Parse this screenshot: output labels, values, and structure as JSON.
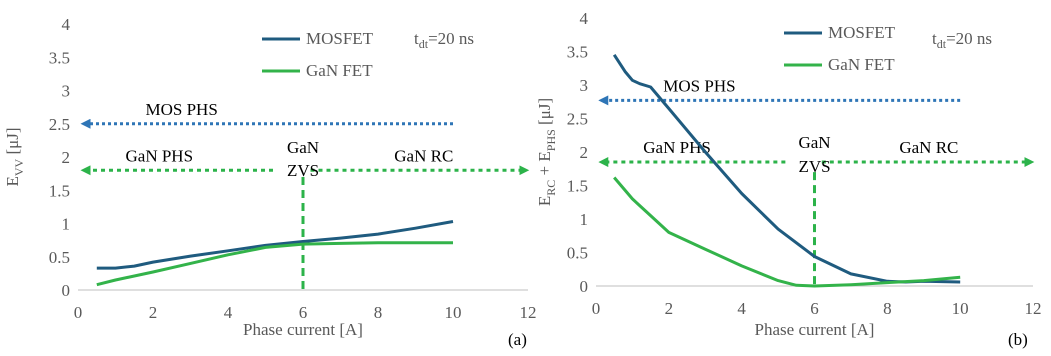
{
  "colors": {
    "mosfet": "#1f5b7f",
    "gan": "#33b34a",
    "mos_arrow": "#2e75b6",
    "gan_arrow": "#2cb34a",
    "axis": "#bfbfbf"
  },
  "chart_data": [
    {
      "type": "line",
      "panel_label": "(a)",
      "xlabel": "Phase current [A]",
      "ylabel": {
        "base": "E",
        "sub": "VV",
        "rest": " [μJ]"
      },
      "xlim": [
        0,
        12
      ],
      "ylim": [
        0,
        4
      ],
      "xticks": [
        "0",
        "2",
        "4",
        "6",
        "8",
        "10",
        "12"
      ],
      "yticks": [
        "0",
        "0.5",
        "1",
        "1.5",
        "2",
        "2.5",
        "3",
        "3.5",
        "4"
      ],
      "grid": false,
      "legend_placement": "top-right",
      "condition": {
        "base": "t",
        "sub": "dt",
        "rest": "=20 ns"
      },
      "series": [
        {
          "name": "MOSFET",
          "color_key": "mosfet",
          "x": [
            0.5,
            1.0,
            1.5,
            2.0,
            3.0,
            4.0,
            5.0,
            6.0,
            7.0,
            8.0,
            9.0,
            10.0
          ],
          "y": [
            0.33,
            0.33,
            0.36,
            0.42,
            0.51,
            0.59,
            0.67,
            0.73,
            0.78,
            0.84,
            0.93,
            1.03
          ]
        },
        {
          "name": "GaN FET",
          "color_key": "gan",
          "x": [
            0.5,
            1.0,
            2.0,
            3.0,
            4.0,
            5.0,
            6.0,
            7.0,
            8.0,
            9.0,
            10.0
          ],
          "y": [
            0.08,
            0.15,
            0.27,
            0.4,
            0.53,
            0.64,
            0.69,
            0.7,
            0.71,
            0.71,
            0.71
          ]
        }
      ],
      "annotations": [
        {
          "text": "MOS PHS",
          "arrow": "left",
          "x_from": 10.0,
          "x_to": 0.2,
          "y": 2.5,
          "color_key": "mos_arrow"
        },
        {
          "text": "GaN PHS",
          "arrow": "left",
          "x_from": 5.2,
          "x_to": 0.2,
          "y": 1.8,
          "color_key": "gan_arrow"
        },
        {
          "text": "GaN RC",
          "arrow": "right",
          "x_from": 6.2,
          "x_to": 11.9,
          "y": 1.8,
          "color_key": "gan_arrow"
        }
      ],
      "zvs": {
        "lines": [
          "GaN",
          "ZVS"
        ],
        "x": 6.0,
        "y_top": 1.7,
        "y_bottom": 0.0
      }
    },
    {
      "type": "line",
      "panel_label": "(b)",
      "xlabel": "Phase current [A]",
      "ylabel": {
        "base": "E",
        "sub": "RC",
        "mid": " + E",
        "sub2": "PHS",
        "rest": " [μJ]"
      },
      "xlim": [
        0,
        12
      ],
      "ylim": [
        0,
        4
      ],
      "xticks": [
        "0",
        "2",
        "4",
        "6",
        "8",
        "10",
        "12"
      ],
      "yticks": [
        "0",
        "0.5",
        "1",
        "1.5",
        "2",
        "2.5",
        "3",
        "3.5",
        "4"
      ],
      "grid": false,
      "legend_placement": "top-right",
      "condition": {
        "base": "t",
        "sub": "dt",
        "rest": "=20 ns"
      },
      "series": [
        {
          "name": "MOSFET",
          "color_key": "mosfet",
          "x": [
            0.5,
            0.8,
            1.0,
            1.2,
            1.5,
            2.0,
            3.0,
            4.0,
            5.0,
            6.0,
            7.0,
            8.0,
            8.5,
            9.0,
            10.0
          ],
          "y": [
            3.45,
            3.2,
            3.07,
            3.02,
            2.97,
            2.65,
            2.0,
            1.38,
            0.85,
            0.44,
            0.18,
            0.07,
            0.06,
            0.07,
            0.06
          ]
        },
        {
          "name": "GaN FET",
          "color_key": "gan",
          "x": [
            0.5,
            1.0,
            1.5,
            2.0,
            3.0,
            4.0,
            5.0,
            5.5,
            6.0,
            7.0,
            8.0,
            9.0,
            10.0
          ],
          "y": [
            1.62,
            1.3,
            1.05,
            0.8,
            0.55,
            0.3,
            0.08,
            0.01,
            0.0,
            0.02,
            0.05,
            0.08,
            0.13
          ]
        }
      ],
      "annotations": [
        {
          "text": "MOS PHS",
          "arrow": "left",
          "x_from": 10.0,
          "x_to": 0.2,
          "y": 2.77,
          "color_key": "mos_arrow"
        },
        {
          "text": "GaN PHS",
          "arrow": "left",
          "x_from": 5.2,
          "x_to": 0.2,
          "y": 1.85,
          "color_key": "gan_arrow"
        },
        {
          "text": "GaN RC",
          "arrow": "right",
          "x_from": 6.2,
          "x_to": 11.9,
          "y": 1.85,
          "color_key": "gan_arrow"
        }
      ],
      "zvs": {
        "lines": [
          "GaN",
          "ZVS"
        ],
        "x": 6.0,
        "y_top": 1.7,
        "y_bottom": 0.0
      }
    }
  ]
}
